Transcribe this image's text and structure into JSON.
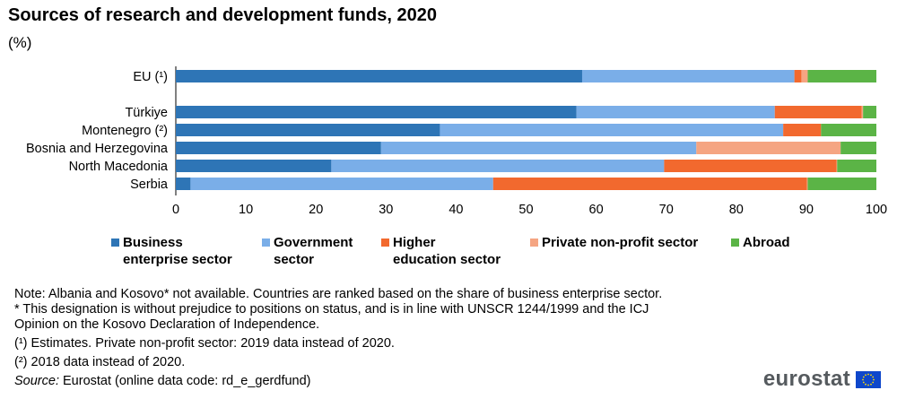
{
  "header": {
    "title": "Sources of research and development funds, 2020",
    "subtitle": "(%)"
  },
  "chart_data": {
    "type": "bar",
    "orientation": "horizontal",
    "stacked": true,
    "categories": [
      "EU (¹)",
      "Türkiye",
      "Montenegro (²)",
      "Bosnia and Herzegovina",
      "North Macedonia",
      "Serbia"
    ],
    "series": [
      {
        "name": "Business enterprise sector",
        "color": "#2e75b6",
        "values": [
          58.0,
          57.2,
          37.7,
          29.3,
          22.2,
          2.1
        ]
      },
      {
        "name": "Government sector",
        "color": "#7aaee8",
        "values": [
          30.3,
          28.3,
          49.0,
          45.0,
          47.5,
          43.2
        ]
      },
      {
        "name": "Higher education sector",
        "color": "#f2692e",
        "values": [
          1.0,
          12.4,
          5.4,
          0.0,
          24.6,
          44.8
        ]
      },
      {
        "name": "Private non-profit sector",
        "color": "#f5a582",
        "values": [
          0.9,
          0.2,
          0.0,
          20.6,
          0.1,
          0.1
        ]
      },
      {
        "name": "Abroad",
        "color": "#5bb446",
        "values": [
          9.8,
          1.9,
          7.9,
          5.1,
          5.6,
          9.8
        ]
      }
    ],
    "xlim": [
      0,
      100
    ],
    "xticks": [
      0,
      10,
      20,
      30,
      40,
      50,
      60,
      70,
      80,
      90,
      100
    ],
    "grid": false,
    "legend_position": "bottom"
  },
  "legend": {
    "items": [
      {
        "line1": "Business",
        "line2": "enterprise sector",
        "color": "#2e75b6"
      },
      {
        "line1": "Government",
        "line2": "sector",
        "color": "#7aaee8"
      },
      {
        "line1": "Higher",
        "line2": "education sector",
        "color": "#f2692e"
      },
      {
        "line1": "Private non-profit sector",
        "line2": "",
        "color": "#f5a582"
      },
      {
        "line1": "Abroad",
        "line2": "",
        "color": "#5bb446"
      }
    ]
  },
  "notes": {
    "note1": "Note: Albania and Kosovo* not available. Countries are ranked based on the share of business enterprise sector.",
    "note2a": "* This designation is without prejudice to positions on status, and is in line with UNSCR 1244/1999 and the ICJ",
    "note2b": "Opinion on the Kosovo Declaration of Independence.",
    "note3": "(¹) Estimates. Private non-profit sector: 2019 data instead of 2020.",
    "note4": "(²) 2018 data instead of 2020.",
    "source_label": "Source:",
    "source_text": " Eurostat (online data code: rd_e_gerdfund)"
  },
  "logo": {
    "text": "eurostat",
    "flag_color": "#0e47cb",
    "star_color": "#ffdd00"
  }
}
